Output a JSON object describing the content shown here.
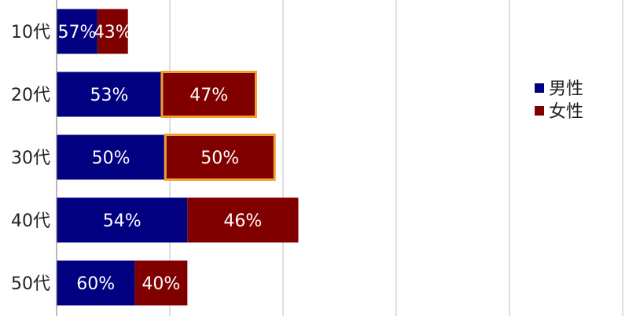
{
  "chart_data": {
    "type": "bar",
    "orientation": "horizontal",
    "stacked": true,
    "categories": [
      "10代",
      "20代",
      "30代",
      "40代",
      "50代"
    ],
    "totals": [
      126,
      352,
      385,
      427,
      231
    ],
    "series": [
      {
        "name": "男性",
        "color": "#000080",
        "percent_labels": [
          "57%",
          "53%",
          "50%",
          "54%",
          "60%"
        ],
        "values": [
          72,
          186,
          192,
          231,
          138
        ]
      },
      {
        "name": "女性",
        "color": "#800000",
        "percent_labels": [
          "43%",
          "47%",
          "50%",
          "46%",
          "40%"
        ],
        "values": [
          54,
          166,
          193,
          196,
          93
        ]
      }
    ],
    "highlighted": [
      {
        "category": "20代",
        "series": "女性"
      },
      {
        "category": "30代",
        "series": "女性"
      }
    ],
    "highlight_color": "#f0a030",
    "grid": true,
    "legend_position": "right"
  }
}
